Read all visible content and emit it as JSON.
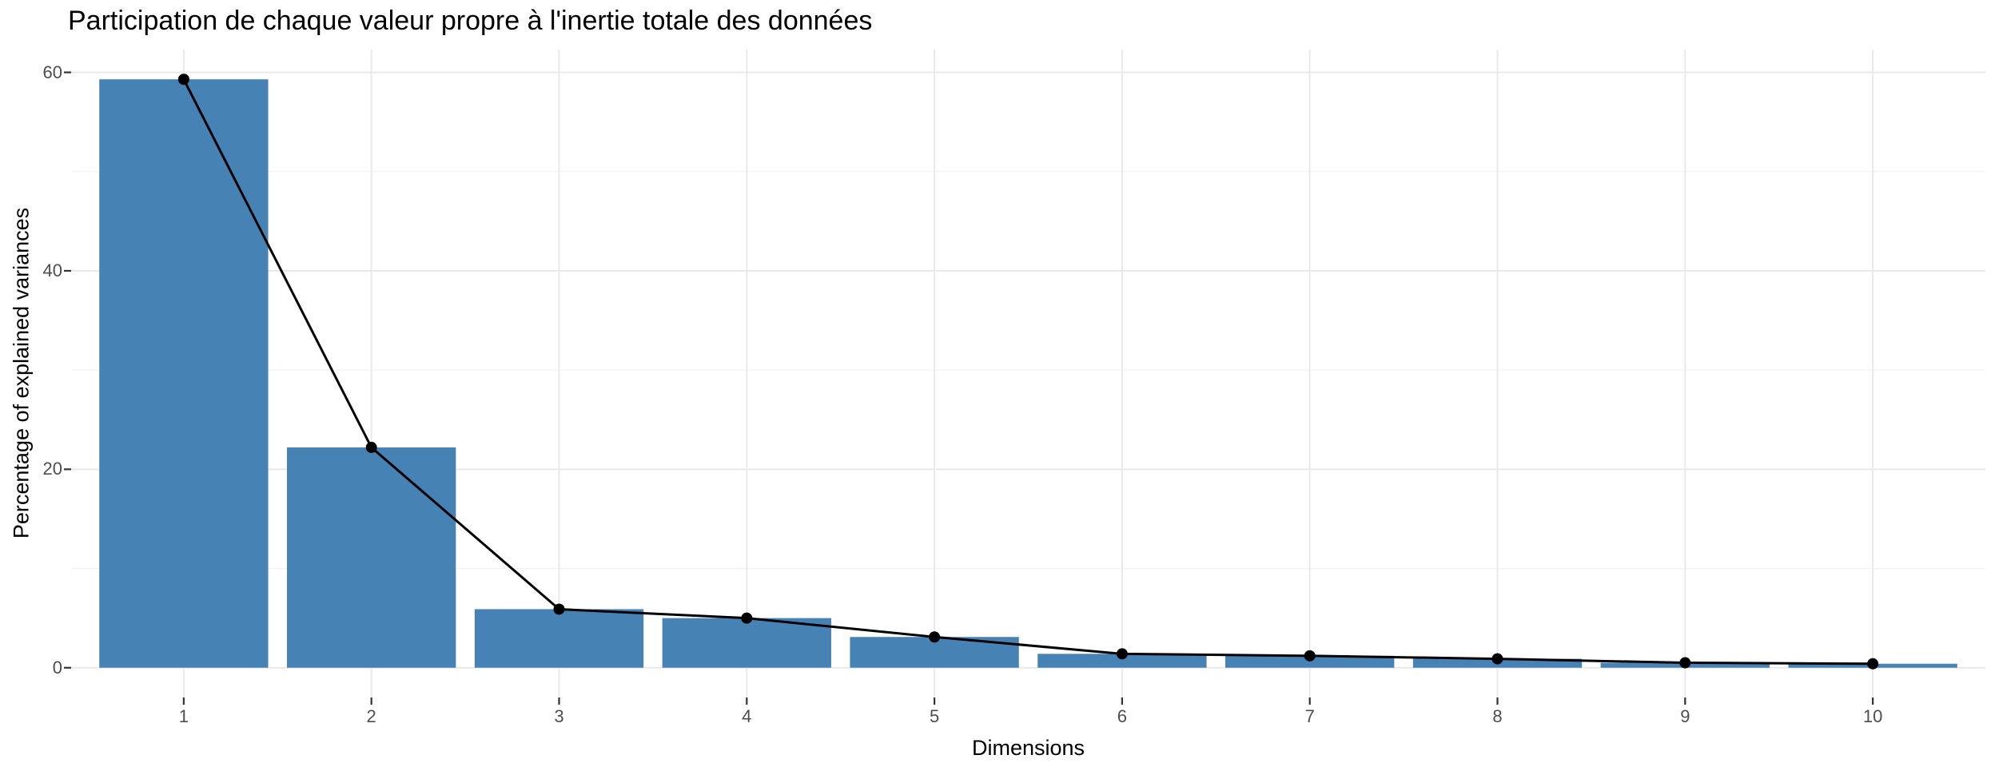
{
  "figure": {
    "background": "#FFFFFF"
  },
  "chart_data": {
    "type": "bar",
    "title": "Participation de chaque valeur propre à l'inertie totale des données",
    "xlabel": "Dimensions",
    "ylabel": "Percentage of explained variances",
    "categories": [
      "1",
      "2",
      "3",
      "4",
      "5",
      "6",
      "7",
      "8",
      "9",
      "10"
    ],
    "series": [
      {
        "name": "percentage-of-explained-variance-bars",
        "type": "bar",
        "values": [
          59.3,
          22.2,
          5.9,
          5.0,
          3.1,
          1.4,
          1.2,
          0.9,
          0.5,
          0.4
        ]
      },
      {
        "name": "percentage-of-explained-variance-line",
        "type": "line",
        "values": [
          59.3,
          22.2,
          5.9,
          5.0,
          3.1,
          1.4,
          1.2,
          0.9,
          0.5,
          0.4
        ]
      }
    ],
    "yticks": [
      0,
      20,
      40,
      60
    ],
    "yticks_minor": [
      10,
      30,
      50
    ],
    "ylim": [
      -3.0,
      62.3
    ],
    "xlim": [
      0.4,
      10.6
    ],
    "bar_rel_width": 0.9,
    "grid": "major+minor",
    "legend": "none",
    "colors": {
      "bar": "#4682B4",
      "line": "#000000",
      "point": "#000000",
      "grid_major": "#E9E9E9",
      "grid_minor": "#F2F2F2",
      "tick_mark": "#333333",
      "tick_label": "#4D4D4D",
      "title": "#000000",
      "axis_title": "#000000",
      "background": "#FFFFFF"
    }
  }
}
